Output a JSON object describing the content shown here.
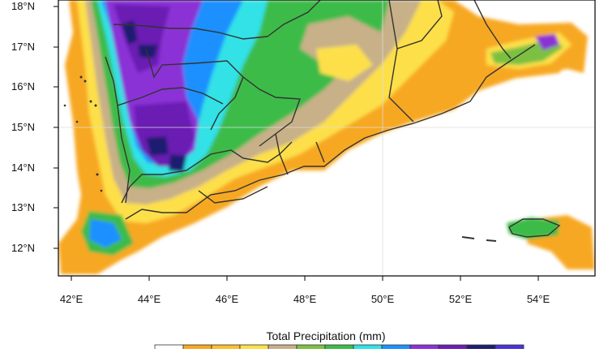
{
  "map": {
    "lat_ticks": [
      "18°N",
      "17°N",
      "16°N",
      "15°N",
      "14°N",
      "13°N",
      "12°N"
    ],
    "lon_ticks": [
      "42°E",
      "44°E",
      "46°E",
      "48°E",
      "50°E",
      "52°E",
      "54°E"
    ],
    "colorbar_title": "Total Precipitation  (mm)",
    "colorbar_colors": [
      "#ffffff",
      "#f7a823",
      "#fbc02d",
      "#fde049",
      "#c8b088",
      "#7cc043",
      "#3dbb4a",
      "#30e2e6",
      "#1e90ff",
      "#8b32d6",
      "#6b1fb3",
      "#1f1f70",
      "#4a35d6"
    ],
    "boundary_color": "#333333",
    "graticule": "on"
  }
}
